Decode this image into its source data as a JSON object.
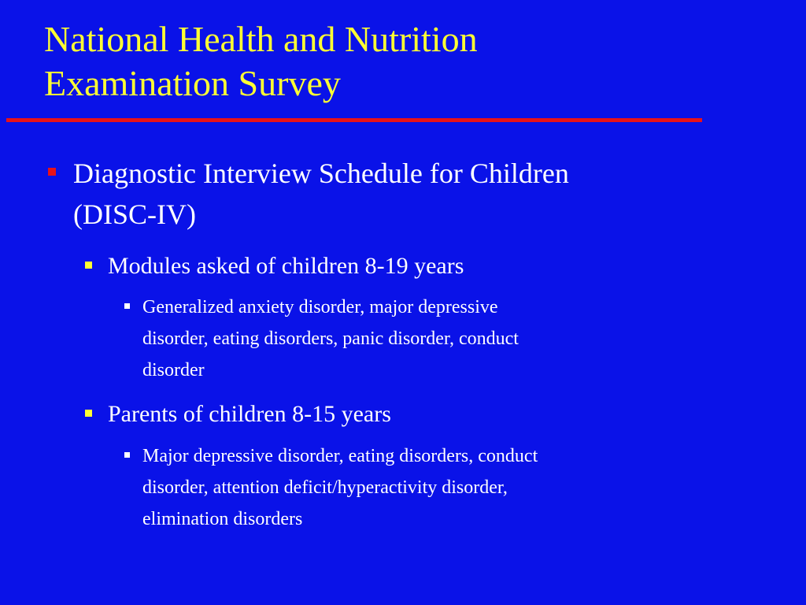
{
  "slide": {
    "title_line1": "National Health and Nutrition",
    "title_line2": "Examination Survey",
    "bullets": {
      "l1_line1": "Diagnostic Interview Schedule for Children",
      "l1_line2": "(DISC-IV)",
      "l2_a": "Modules asked of children 8-19 years",
      "l3_a_line1": "Generalized anxiety disorder, major depressive",
      "l3_a_line2": "disorder, eating disorders, panic disorder, conduct",
      "l3_a_line3": "disorder",
      "l2_b": "Parents of children 8-15 years",
      "l3_b_line1": "Major depressive disorder, eating disorders, conduct",
      "l3_b_line2": "disorder, attention deficit/hyperactivity disorder,",
      "l3_b_line3": "elimination disorders"
    }
  },
  "colors": {
    "background": "#0a12e8",
    "title": "#ffff33",
    "rule": "#e8121a",
    "level1_bullet": "#e8121a",
    "level2_bullet": "#ffff33",
    "level3_bullet": "#ffffff",
    "body_text": "#ffffff"
  }
}
